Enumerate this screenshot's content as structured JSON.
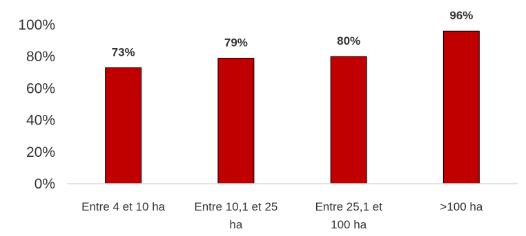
{
  "chart_data": {
    "type": "bar",
    "categories": [
      [
        "Entre 4 et 10 ha"
      ],
      [
        "Entre 10,1 et 25",
        "ha"
      ],
      [
        "Entre 25,1 et",
        "100 ha"
      ],
      [
        ">100 ha"
      ]
    ],
    "values": [
      73,
      79,
      80,
      96
    ],
    "data_labels": [
      "73%",
      "79%",
      "80%",
      "96%"
    ],
    "ylim": [
      0,
      100
    ],
    "yticks": [
      0,
      20,
      40,
      60,
      80,
      100
    ],
    "ytick_labels": [
      "0%",
      "20%",
      "40%",
      "60%",
      "80%",
      "100%"
    ],
    "grid": false,
    "legend": "none",
    "bar_color": "#C00000",
    "axis_color": "#D9D9D9"
  }
}
